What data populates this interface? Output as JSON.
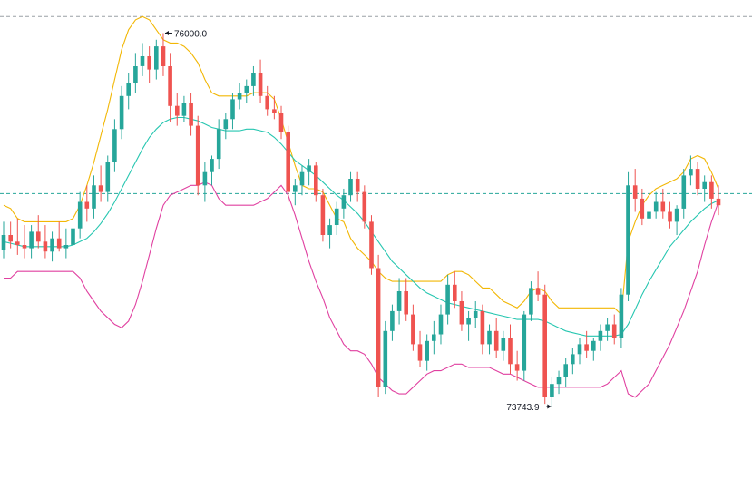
{
  "chart_data": {
    "type": "candlestick",
    "title": "",
    "xlabel": "",
    "ylabel": "",
    "ylim": [
      73300,
      76200
    ],
    "annotations": {
      "high_label": "76000.0",
      "low_label": "73743.9"
    },
    "reference_lines": [
      76100,
      75030
    ],
    "colors": {
      "up": "#26a69a",
      "down": "#ef5350",
      "bb_upper": "#f2b705",
      "bb_middle": "#26c6b0",
      "bb_lower": "#e040a0",
      "ref_line_top": "#9aa0a6",
      "ref_line_mid": "#26a69a"
    },
    "series": [
      {
        "name": "",
        "kind": "ohlc",
        "values": [
          [
            74690,
            74860,
            74640,
            74780
          ],
          [
            74780,
            74860,
            74700,
            74740
          ],
          [
            74740,
            74880,
            74660,
            74720
          ],
          [
            74720,
            74840,
            74640,
            74700
          ],
          [
            74700,
            74840,
            74640,
            74800
          ],
          [
            74800,
            74900,
            74700,
            74740
          ],
          [
            74740,
            74840,
            74640,
            74680
          ],
          [
            74680,
            74800,
            74620,
            74760
          ],
          [
            74760,
            74860,
            74680,
            74700
          ],
          [
            74700,
            74820,
            74640,
            74720
          ],
          [
            74720,
            74860,
            74680,
            74820
          ],
          [
            74820,
            75040,
            74760,
            74980
          ],
          [
            74980,
            75080,
            74860,
            74940
          ],
          [
            74940,
            75140,
            74880,
            75080
          ],
          [
            75080,
            75200,
            74980,
            75040
          ],
          [
            75040,
            75260,
            74980,
            75220
          ],
          [
            75220,
            75480,
            75160,
            75420
          ],
          [
            75420,
            75680,
            75360,
            75620
          ],
          [
            75620,
            75760,
            75540,
            75700
          ],
          [
            75700,
            75880,
            75640,
            75800
          ],
          [
            75800,
            75940,
            75740,
            75860
          ],
          [
            75860,
            75920,
            75700,
            75780
          ],
          [
            75780,
            75960,
            75720,
            75920
          ],
          [
            75920,
            76000,
            75740,
            75800
          ],
          [
            75800,
            75880,
            75460,
            75560
          ],
          [
            75560,
            75640,
            75440,
            75500
          ],
          [
            75500,
            75620,
            75460,
            75580
          ],
          [
            75580,
            75640,
            75380,
            75440
          ],
          [
            75440,
            75500,
            75020,
            75080
          ],
          [
            75080,
            75220,
            74980,
            75160
          ],
          [
            75160,
            75260,
            75080,
            75240
          ],
          [
            75240,
            75480,
            75180,
            75420
          ],
          [
            75420,
            75520,
            75360,
            75480
          ],
          [
            75480,
            75640,
            75420,
            75600
          ],
          [
            75600,
            75700,
            75540,
            75640
          ],
          [
            75640,
            75720,
            75580,
            75680
          ],
          [
            75680,
            75800,
            75620,
            75760
          ],
          [
            75760,
            75840,
            75580,
            75620
          ],
          [
            75620,
            75680,
            75500,
            75540
          ],
          [
            75540,
            75620,
            75480,
            75520
          ],
          [
            75520,
            75560,
            75360,
            75400
          ],
          [
            75400,
            75440,
            74980,
            75040
          ],
          [
            75040,
            75120,
            74960,
            75080
          ],
          [
            75080,
            75200,
            75020,
            75160
          ],
          [
            75160,
            75240,
            75080,
            75200
          ],
          [
            75200,
            75220,
            74980,
            75020
          ],
          [
            75020,
            75060,
            74740,
            74780
          ],
          [
            74780,
            74880,
            74700,
            74840
          ],
          [
            74840,
            74980,
            74780,
            74940
          ],
          [
            74940,
            75060,
            74880,
            75020
          ],
          [
            75020,
            75160,
            74980,
            75120
          ],
          [
            75120,
            75160,
            74980,
            75040
          ],
          [
            75040,
            75080,
            74820,
            74860
          ],
          [
            74860,
            74900,
            74540,
            74580
          ],
          [
            74580,
            74660,
            73800,
            73860
          ],
          [
            73860,
            74260,
            73820,
            74200
          ],
          [
            74200,
            74360,
            74140,
            74320
          ],
          [
            74320,
            74520,
            74240,
            74440
          ],
          [
            74440,
            74520,
            74260,
            74300
          ],
          [
            74300,
            74360,
            74080,
            74120
          ],
          [
            74120,
            74200,
            73980,
            74020
          ],
          [
            74020,
            74180,
            73960,
            74140
          ],
          [
            74140,
            74260,
            74060,
            74180
          ],
          [
            74180,
            74360,
            74120,
            74300
          ],
          [
            74300,
            74540,
            74240,
            74480
          ],
          [
            74480,
            74560,
            74340,
            74380
          ],
          [
            74380,
            74440,
            74200,
            74240
          ],
          [
            74240,
            74320,
            74140,
            74280
          ],
          [
            74280,
            74380,
            74220,
            74320
          ],
          [
            74320,
            74360,
            74060,
            74120
          ],
          [
            74120,
            74240,
            74060,
            74200
          ],
          [
            74200,
            74280,
            74040,
            74080
          ],
          [
            74080,
            74200,
            74020,
            74160
          ],
          [
            74160,
            74240,
            73940,
            74000
          ],
          [
            74000,
            74080,
            73900,
            73960
          ],
          [
            73960,
            74320,
            73900,
            74300
          ],
          [
            74300,
            74500,
            74260,
            74460
          ],
          [
            74460,
            74560,
            74380,
            74420
          ],
          [
            74420,
            74480,
            73760,
            73800
          ],
          [
            73800,
            73920,
            73744,
            73880
          ],
          [
            73880,
            73960,
            73820,
            73920
          ],
          [
            73920,
            74040,
            73860,
            74000
          ],
          [
            74000,
            74100,
            73940,
            74060
          ],
          [
            74060,
            74160,
            74000,
            74120
          ],
          [
            74120,
            74200,
            74040,
            74080
          ],
          [
            74080,
            74160,
            74020,
            74140
          ],
          [
            74140,
            74240,
            74080,
            74200
          ],
          [
            74200,
            74280,
            74140,
            74240
          ],
          [
            74240,
            74300,
            74120,
            74160
          ],
          [
            74160,
            74460,
            74100,
            74420
          ],
          [
            74420,
            75160,
            74380,
            75080
          ],
          [
            75080,
            75180,
            74920,
            75000
          ],
          [
            75000,
            75060,
            74840,
            74880
          ],
          [
            74880,
            74960,
            74820,
            74920
          ],
          [
            74920,
            75040,
            74880,
            74980
          ],
          [
            74980,
            75060,
            74880,
            74920
          ],
          [
            74920,
            74980,
            74820,
            74860
          ],
          [
            74860,
            74960,
            74780,
            74940
          ],
          [
            74940,
            75180,
            74880,
            75140
          ],
          [
            75140,
            75260,
            75080,
            75180
          ],
          [
            75180,
            75220,
            75020,
            75060
          ],
          [
            75060,
            75140,
            74980,
            75100
          ],
          [
            75100,
            75140,
            74940,
            75000
          ],
          [
            75000,
            75080,
            74900,
            74960
          ]
        ]
      },
      {
        "name": "",
        "kind": "bb_upper",
        "values": [
          74960,
          74940,
          74880,
          74860,
          74860,
          74860,
          74860,
          74860,
          74860,
          74860,
          74880,
          74960,
          75080,
          75220,
          75380,
          75540,
          75720,
          75900,
          76020,
          76080,
          76100,
          76080,
          76020,
          75960,
          75940,
          75940,
          75920,
          75880,
          75820,
          75720,
          75640,
          75620,
          75620,
          75620,
          75620,
          75620,
          75640,
          75640,
          75640,
          75600,
          75480,
          75340,
          75200,
          75080,
          75060,
          75060,
          75040,
          74960,
          74880,
          74860,
          74760,
          74700,
          74660,
          74620,
          74560,
          74520,
          74500,
          74500,
          74500,
          74500,
          74500,
          74500,
          74500,
          74500,
          74540,
          74560,
          74560,
          74540,
          74500,
          74460,
          74460,
          74420,
          74380,
          74360,
          74340,
          74380,
          74440,
          74460,
          74440,
          74380,
          74340,
          74340,
          74340,
          74340,
          74340,
          74340,
          74340,
          74340,
          74340,
          74300,
          74740,
          74860,
          74960,
          75020,
          75060,
          75080,
          75100,
          75120,
          75160,
          75240,
          75260,
          75240,
          75160,
          75060
        ]
      },
      {
        "name": "",
        "kind": "bb_middle",
        "values": [
          74740,
          74730,
          74720,
          74710,
          74710,
          74710,
          74710,
          74710,
          74710,
          74710,
          74720,
          74740,
          74760,
          74800,
          74850,
          74910,
          74980,
          75060,
          75140,
          75220,
          75300,
          75370,
          75420,
          75460,
          75480,
          75490,
          75490,
          75480,
          75470,
          75450,
          75430,
          75420,
          75410,
          75410,
          75410,
          75420,
          75420,
          75410,
          75400,
          75370,
          75330,
          75280,
          75230,
          75200,
          75170,
          75140,
          75100,
          75060,
          75020,
          74990,
          74950,
          74910,
          74860,
          74800,
          74740,
          74680,
          74620,
          74580,
          74540,
          74500,
          74460,
          74430,
          74410,
          74390,
          74370,
          74360,
          74350,
          74340,
          74330,
          74320,
          74310,
          74300,
          74290,
          74280,
          74270,
          74270,
          74270,
          74270,
          74260,
          74240,
          74220,
          74200,
          74190,
          74180,
          74170,
          74170,
          74170,
          74170,
          74170,
          74180,
          74240,
          74330,
          74420,
          74500,
          74570,
          74640,
          74710,
          74760,
          74810,
          74860,
          74900,
          74940,
          74970,
          74990
        ]
      },
      {
        "name": "",
        "kind": "bb_lower",
        "values": [
          74520,
          74520,
          74560,
          74560,
          74560,
          74560,
          74560,
          74560,
          74560,
          74560,
          74560,
          74520,
          74440,
          74380,
          74320,
          74280,
          74240,
          74220,
          74260,
          74360,
          74500,
          74660,
          74820,
          74960,
          75020,
          75040,
          75060,
          75080,
          75080,
          75100,
          75080,
          75000,
          74960,
          74960,
          74960,
          74960,
          74960,
          74980,
          75000,
          75040,
          75080,
          75020,
          74900,
          74760,
          74620,
          74500,
          74400,
          74280,
          74200,
          74120,
          74080,
          74080,
          74060,
          74000,
          73920,
          73880,
          73840,
          73820,
          73820,
          73860,
          73900,
          73940,
          73960,
          73960,
          73980,
          74000,
          74000,
          73980,
          73980,
          73980,
          73980,
          73960,
          73940,
          73940,
          73920,
          73900,
          73880,
          73860,
          73860,
          73860,
          73860,
          73860,
          73860,
          73860,
          73860,
          73860,
          73860,
          73880,
          73920,
          73960,
          73820,
          73800,
          73840,
          73880,
          73960,
          74040,
          74120,
          74220,
          74320,
          74440,
          74560,
          74720,
          74860,
          74980
        ]
      }
    ]
  }
}
